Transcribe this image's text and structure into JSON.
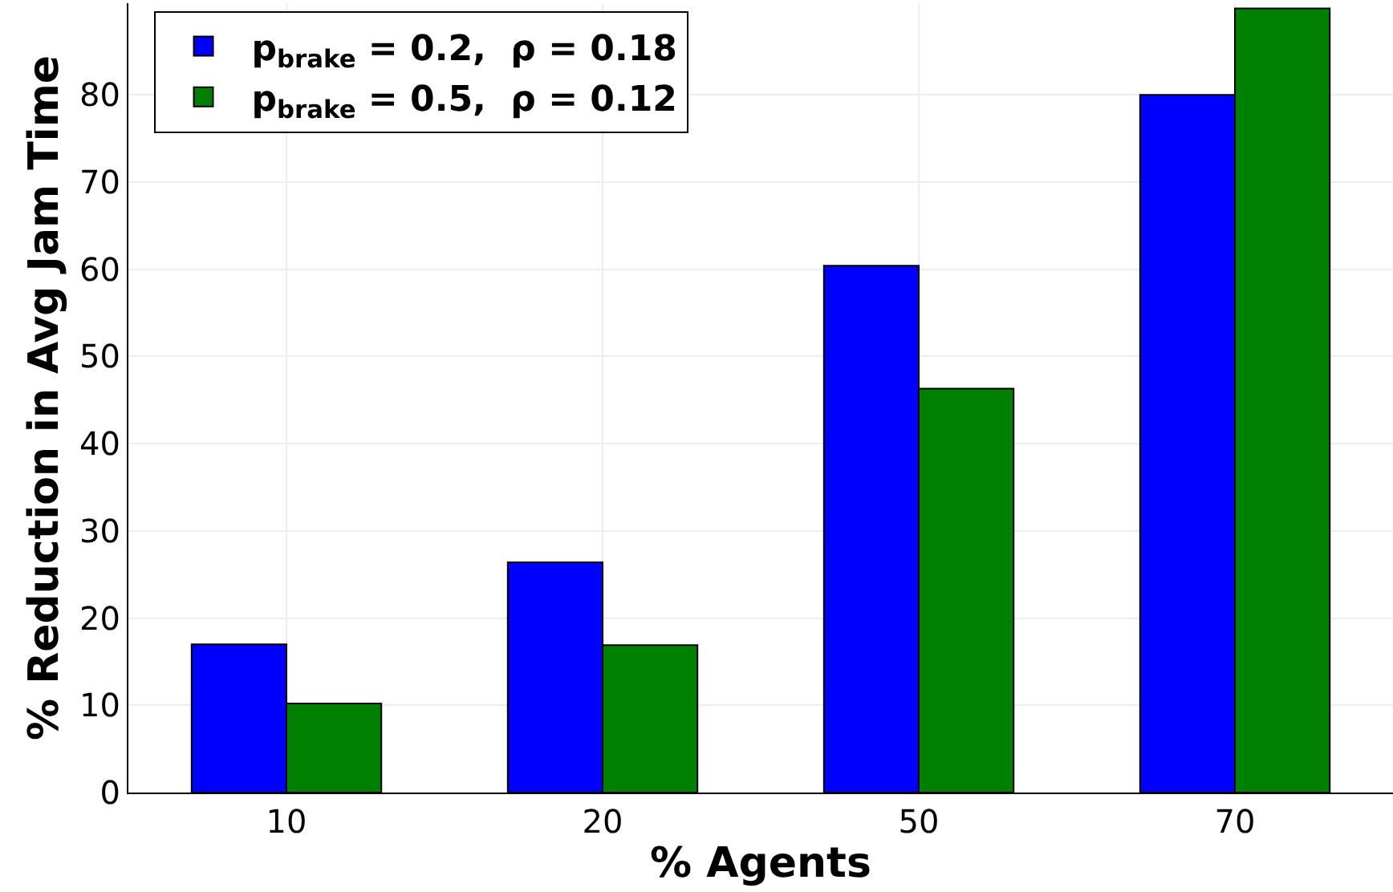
{
  "chart_data": {
    "type": "bar",
    "xlabel": "% Agents",
    "ylabel": "% Reduction in Avg Jam Time",
    "categories": [
      "10",
      "20",
      "50",
      "70"
    ],
    "series": [
      {
        "name": "p$_{brake}$ = 0.2,  ρ = 0.18",
        "color": "#0000ff",
        "values": [
          17.0,
          26.4,
          60.4,
          80.0
        ]
      },
      {
        "name": "p$_{brake}$ = 0.5,  ρ = 0.12",
        "color": "#008000",
        "values": [
          10.2,
          16.9,
          46.3,
          89.9
        ]
      }
    ],
    "ylim": [
      0,
      90.5
    ],
    "yticks": [
      0,
      10,
      20,
      30,
      40,
      50,
      60,
      70,
      80
    ],
    "grid": true,
    "legend": "top left"
  }
}
